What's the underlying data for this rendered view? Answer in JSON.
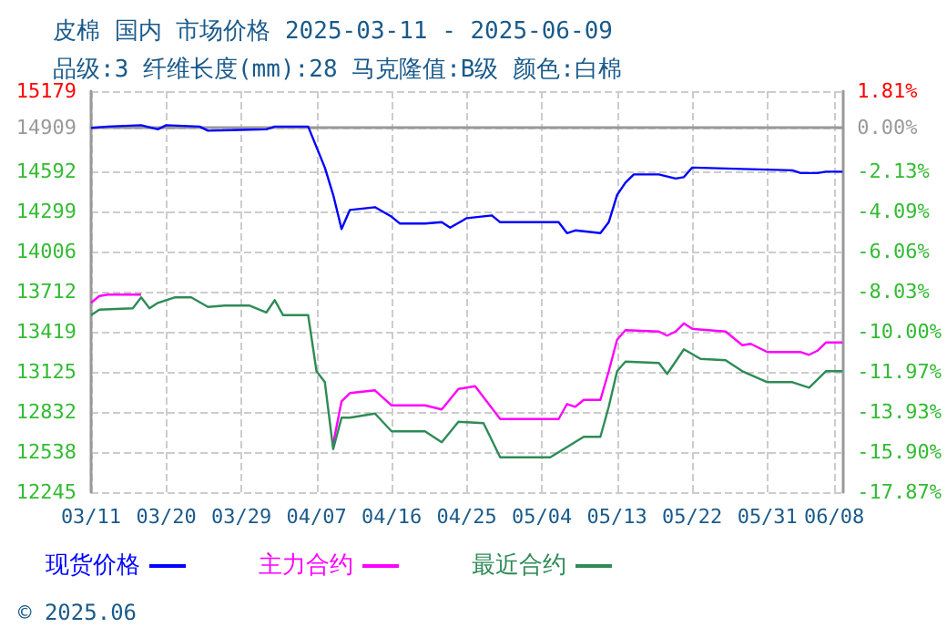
{
  "chart_data": {
    "type": "line",
    "title": "皮棉 国内 市场价格 2025-03-11 - 2025-06-09",
    "subtitle": "品级:3 纤维长度(mm):28 马克隆值:B级 颜色:白棉",
    "annotations": [
      "© 2025.06"
    ],
    "series": [
      {
        "name": "现货价格",
        "color": "#0000ff",
        "x": [
          "2025-03-11",
          "2025-03-13",
          "2025-03-17",
          "2025-03-19",
          "2025-03-20",
          "2025-03-24",
          "2025-03-25",
          "2025-04-01",
          "2025-04-02",
          "2025-04-06",
          "2025-04-08",
          "2025-04-09",
          "2025-04-10",
          "2025-04-11",
          "2025-04-14",
          "2025-04-16",
          "2025-04-17",
          "2025-04-20",
          "2025-04-22",
          "2025-04-23",
          "2025-04-25",
          "2025-04-28",
          "2025-04-29",
          "2025-05-06",
          "2025-05-07",
          "2025-05-08",
          "2025-05-11",
          "2025-05-12",
          "2025-05-13",
          "2025-05-14",
          "2025-05-15",
          "2025-05-18",
          "2025-05-20",
          "2025-05-21",
          "2025-05-22",
          "2025-05-28",
          "2025-06-03",
          "2025-06-04",
          "2025-06-06",
          "2025-06-07",
          "2025-06-09"
        ],
        "values": [
          14910,
          14920,
          14930,
          14900,
          14930,
          14920,
          14890,
          14900,
          14920,
          14920,
          14620,
          14420,
          14170,
          14310,
          14330,
          14260,
          14210,
          14210,
          14220,
          14180,
          14250,
          14270,
          14220,
          14220,
          14140,
          14160,
          14140,
          14220,
          14420,
          14510,
          14570,
          14570,
          14540,
          14550,
          14620,
          14610,
          14600,
          14580,
          14580,
          14590,
          14590
        ]
      },
      {
        "name": "主力合约",
        "color": "#ff00ff",
        "x": [
          "2025-03-11",
          "2025-03-12",
          "2025-03-13",
          "2025-03-17",
          "2025-03-18",
          "2025-04-09",
          "2025-04-10",
          "2025-04-11",
          "2025-04-14",
          "2025-04-16",
          "2025-04-20",
          "2025-04-22",
          "2025-04-24",
          "2025-04-26",
          "2025-04-29",
          "2025-05-06",
          "2025-05-07",
          "2025-05-08",
          "2025-05-09",
          "2025-05-11",
          "2025-05-12",
          "2025-05-13",
          "2025-05-14",
          "2025-05-18",
          "2025-05-19",
          "2025-05-20",
          "2025-05-21",
          "2025-05-22",
          "2025-05-26",
          "2025-05-28",
          "2025-05-29",
          "2025-05-31",
          "2025-06-04",
          "2025-06-05",
          "2025-06-06",
          "2025-06-07",
          "2025-06-09"
        ],
        "values": [
          13630,
          13680,
          13690,
          13690,
          null,
          12600,
          12910,
          12970,
          12990,
          12880,
          12880,
          12850,
          13000,
          13020,
          12780,
          12780,
          12890,
          12870,
          12920,
          12920,
          13130,
          13360,
          13430,
          13420,
          13390,
          13420,
          13480,
          13440,
          13420,
          13320,
          13330,
          13270,
          13270,
          13250,
          13280,
          13340,
          13340
        ]
      },
      {
        "name": "最近合约",
        "color": "#2e8b57",
        "x": [
          "2025-03-11",
          "2025-03-12",
          "2025-03-16",
          "2025-03-17",
          "2025-03-18",
          "2025-03-19",
          "2025-03-21",
          "2025-03-23",
          "2025-03-25",
          "2025-03-27",
          "2025-03-30",
          "2025-04-01",
          "2025-04-02",
          "2025-04-03",
          "2025-04-06",
          "2025-04-07",
          "2025-04-08",
          "2025-04-09",
          "2025-04-10",
          "2025-04-11",
          "2025-04-14",
          "2025-04-16",
          "2025-04-20",
          "2025-04-22",
          "2025-04-24",
          "2025-04-27",
          "2025-04-29",
          "2025-05-05",
          "2025-05-09",
          "2025-05-11",
          "2025-05-12",
          "2025-05-13",
          "2025-05-14",
          "2025-05-18",
          "2025-05-19",
          "2025-05-21",
          "2025-05-23",
          "2025-05-26",
          "2025-05-28",
          "2025-05-31",
          "2025-06-03",
          "2025-06-05",
          "2025-06-07",
          "2025-06-09"
        ],
        "values": [
          13540,
          13580,
          13590,
          13670,
          13590,
          13630,
          13670,
          13670,
          13600,
          13610,
          13610,
          13560,
          13650,
          13540,
          13540,
          13130,
          13050,
          12560,
          12790,
          12790,
          12820,
          12690,
          12690,
          12610,
          12760,
          12750,
          12500,
          12500,
          12650,
          12650,
          12870,
          13130,
          13200,
          13190,
          13110,
          13290,
          13220,
          13210,
          13130,
          13050,
          13050,
          13010,
          13130,
          13130
        ]
      }
    ],
    "xlim": [
      "2025-03-11",
      "2025-06-09"
    ],
    "xticks": [
      {
        "value": "2025-03-11",
        "label": "03/11"
      },
      {
        "value": "2025-03-20",
        "label": "03/20"
      },
      {
        "value": "2025-03-29",
        "label": "03/29"
      },
      {
        "value": "2025-04-07",
        "label": "04/07"
      },
      {
        "value": "2025-04-16",
        "label": "04/16"
      },
      {
        "value": "2025-04-25",
        "label": "04/25"
      },
      {
        "value": "2025-05-04",
        "label": "05/04"
      },
      {
        "value": "2025-05-13",
        "label": "05/13"
      },
      {
        "value": "2025-05-22",
        "label": "05/22"
      },
      {
        "value": "2025-05-31",
        "label": "05/31"
      },
      {
        "value": "2025-06-08",
        "label": "06/08"
      }
    ],
    "ylim": [
      12245,
      15179
    ],
    "yticks": [
      12245,
      12538,
      12832,
      13125,
      13419,
      13712,
      14006,
      14299,
      14592,
      14909,
      15179
    ],
    "y2lim": [
      -17.87,
      1.81
    ],
    "y2ticks": [
      {
        "value": -17.87,
        "label": "-17.87%"
      },
      {
        "value": -15.9,
        "label": "-15.90%"
      },
      {
        "value": -13.93,
        "label": "-13.93%"
      },
      {
        "value": -11.97,
        "label": "-11.97%"
      },
      {
        "value": -10.0,
        "label": "-10.00%"
      },
      {
        "value": -8.03,
        "label": "-8.03%"
      },
      {
        "value": -6.06,
        "label": "-6.06%"
      },
      {
        "value": -4.09,
        "label": "-4.09%"
      },
      {
        "value": -2.13,
        "label": "-2.13%"
      },
      {
        "value": 0,
        "label": "0.00%"
      },
      {
        "value": 1.81,
        "label": "1.81%"
      }
    ],
    "grid": true,
    "legend": "bottom",
    "marker": "none",
    "line_style": "solid"
  }
}
